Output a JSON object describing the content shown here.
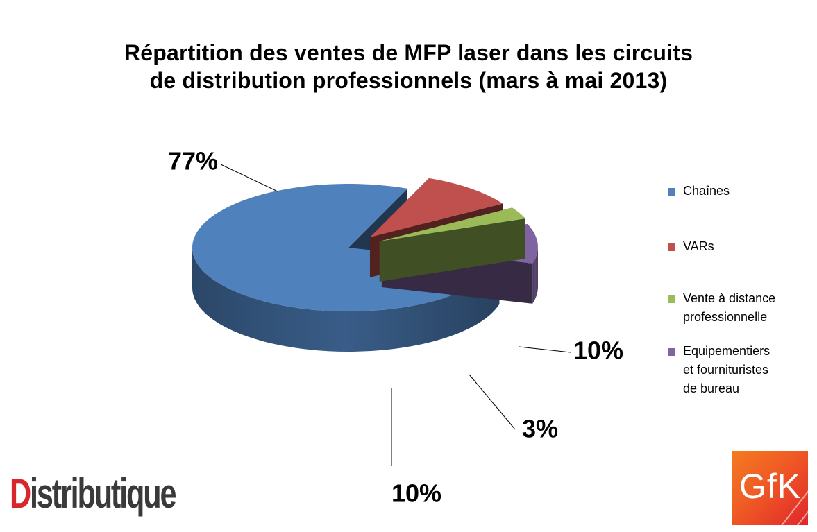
{
  "chart_data": {
    "type": "pie",
    "title_lines": [
      "Répartition des ventes de MFP laser dans les circuits",
      "de distribution professionnels (mars à mai 2013)"
    ],
    "series": [
      {
        "name": "Chaînes",
        "value": 77,
        "label": "77%",
        "color": "#4f81bd"
      },
      {
        "name": "VARs",
        "value": 10,
        "label": "10%",
        "color": "#c0504d"
      },
      {
        "name": "Vente à distance professionnelle",
        "value": 3,
        "label": "3%",
        "color": "#9bbb59"
      },
      {
        "name": "Equipementiers et fournituristes de bureau",
        "value": 10,
        "label": "10%",
        "color": "#8064a2"
      }
    ],
    "legend_position": "right",
    "style": "3d-exploded"
  },
  "legend": {
    "items": [
      {
        "lines": [
          "Chaînes"
        ],
        "color": "#4f81bd"
      },
      {
        "lines": [
          "VARs"
        ],
        "color": "#c0504d"
      },
      {
        "lines": [
          "Vente à distance",
          "professionnelle"
        ],
        "color": "#9bbb59"
      },
      {
        "lines": [
          "Equipementiers",
          "et fournituristes",
          "de bureau"
        ],
        "color": "#8064a2"
      }
    ]
  },
  "logos": {
    "distributique": "Distributique",
    "gfk": "GfK"
  }
}
